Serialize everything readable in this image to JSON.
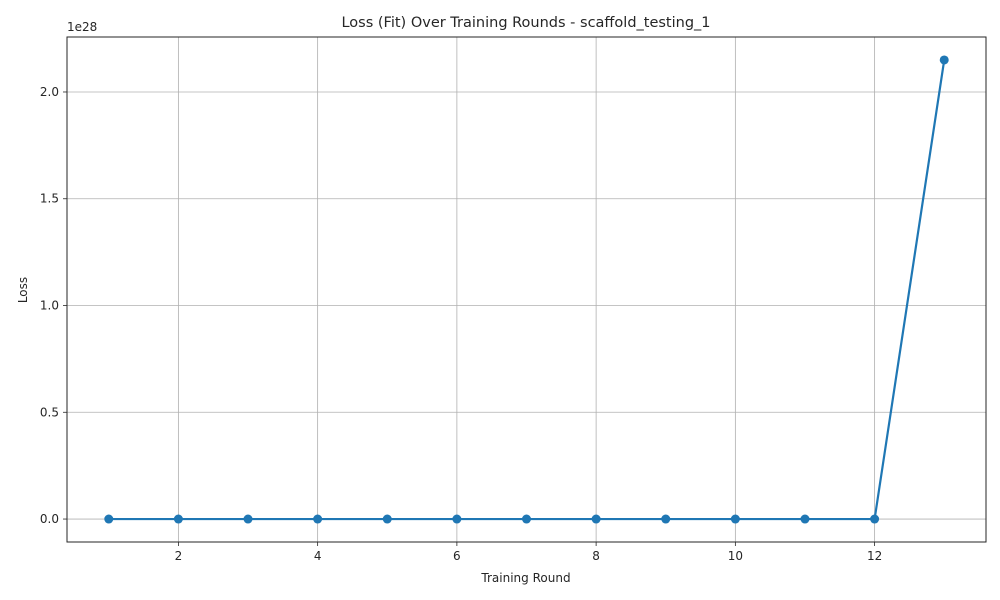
{
  "chart_data": {
    "type": "line",
    "title": "Loss (Fit) Over Training Rounds  - scaffold_testing_1",
    "xlabel": "Training Round",
    "ylabel": "Loss",
    "offset_label": "1e28",
    "xlim": [
      0.4,
      13.6
    ],
    "ylim": [
      -0.1075,
      2.2575
    ],
    "x_ticks": [
      2,
      4,
      6,
      8,
      10,
      12
    ],
    "y_ticks": [
      0.0,
      0.5,
      1.0,
      1.5,
      2.0
    ],
    "y_tick_labels": [
      "0.0",
      "0.5",
      "1.0",
      "1.5",
      "2.0"
    ],
    "grid": true,
    "line_color": "#1f77b4",
    "series": [
      {
        "x": [
          1,
          2,
          3,
          4,
          5,
          6,
          7,
          8,
          9,
          10,
          11,
          12,
          13
        ],
        "values": [
          0,
          0,
          0,
          0,
          0,
          0,
          0,
          0,
          0,
          0,
          0,
          0,
          2.15
        ]
      }
    ]
  }
}
